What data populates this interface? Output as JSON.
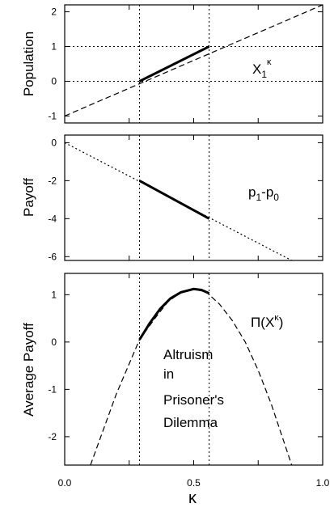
{
  "chart_data": [
    {
      "type": "line",
      "ylabel": "Population",
      "xlim": [
        0.0,
        1.0
      ],
      "ylim": [
        -1.2,
        2.2
      ],
      "yticks": [
        "-1",
        "0",
        "1",
        "2"
      ],
      "series": [
        {
          "name": "X₁ᵋ",
          "style": "dashed",
          "x": [
            0.0,
            1.0
          ],
          "y": [
            -1.0,
            2.3
          ]
        },
        {
          "name": "X₁ᵋ",
          "style": "solid-bold",
          "x": [
            0.29,
            0.56
          ],
          "y": [
            0.0,
            1.0
          ]
        }
      ],
      "hlines": [
        {
          "y": 0,
          "style": "dotted"
        },
        {
          "y": 1,
          "style": "dotted"
        }
      ],
      "vlines": [
        {
          "x": 0.29,
          "style": "dotted"
        },
        {
          "x": 0.56,
          "style": "dotted"
        }
      ]
    },
    {
      "type": "line",
      "ylabel": "Payoff",
      "xlim": [
        0.0,
        1.0
      ],
      "ylim": [
        -6.2,
        0.4
      ],
      "yticks": [
        "0",
        "-2",
        "-4",
        "-6"
      ],
      "series": [
        {
          "name": "p₁-p₀",
          "style": "dotted",
          "x": [
            0.0,
            0.88
          ],
          "y": [
            0.0,
            -6.2
          ]
        },
        {
          "name": "p₁-p₀",
          "style": "solid-bold",
          "x": [
            0.29,
            0.56
          ],
          "y": [
            -2.0,
            -4.0
          ]
        }
      ],
      "vlines": [
        {
          "x": 0.29,
          "style": "dotted"
        },
        {
          "x": 0.56,
          "style": "dotted"
        }
      ]
    },
    {
      "type": "line",
      "ylabel": "Average Payoff",
      "xlabel": "κ",
      "xlim": [
        0.0,
        1.0
      ],
      "ylim": [
        -2.6,
        1.45
      ],
      "xticks": [
        "0.0",
        "0.5",
        "1.0"
      ],
      "yticks": [
        "1",
        "0",
        "-1",
        "-2"
      ],
      "series": [
        {
          "name": "Π(Xᵋ)",
          "style": "dashed",
          "x": [
            0.1,
            0.2,
            0.29,
            0.35,
            0.4,
            0.45,
            0.5,
            0.55,
            0.6,
            0.65,
            0.7,
            0.75,
            0.8,
            0.88
          ],
          "y": [
            -2.6,
            -1.1,
            0.05,
            0.5,
            0.85,
            1.05,
            1.12,
            1.05,
            0.8,
            0.45,
            0.0,
            -0.6,
            -1.3,
            -2.6
          ]
        },
        {
          "name": "Π(Xᵋ)",
          "style": "solid-bold",
          "x": [
            0.29,
            0.33,
            0.37,
            0.41,
            0.45,
            0.5,
            0.53,
            0.56
          ],
          "y": [
            0.05,
            0.4,
            0.7,
            0.92,
            1.05,
            1.12,
            1.1,
            1.03
          ]
        }
      ],
      "vlines": [
        {
          "x": 0.29,
          "style": "dotted"
        },
        {
          "x": 0.56,
          "style": "dotted"
        }
      ],
      "annotation": [
        "Altruism",
        "in",
        "Prisoner's",
        "Dilemma"
      ]
    }
  ],
  "labels": {
    "top_series": "X",
    "top_sub": "1",
    "top_sup": "κ",
    "mid_series": "p",
    "mid_sub1": "1",
    "mid_sep": "-p",
    "mid_sub0": "0",
    "bot_series": "Π(X",
    "bot_sup": "κ",
    "bot_close": ")"
  }
}
